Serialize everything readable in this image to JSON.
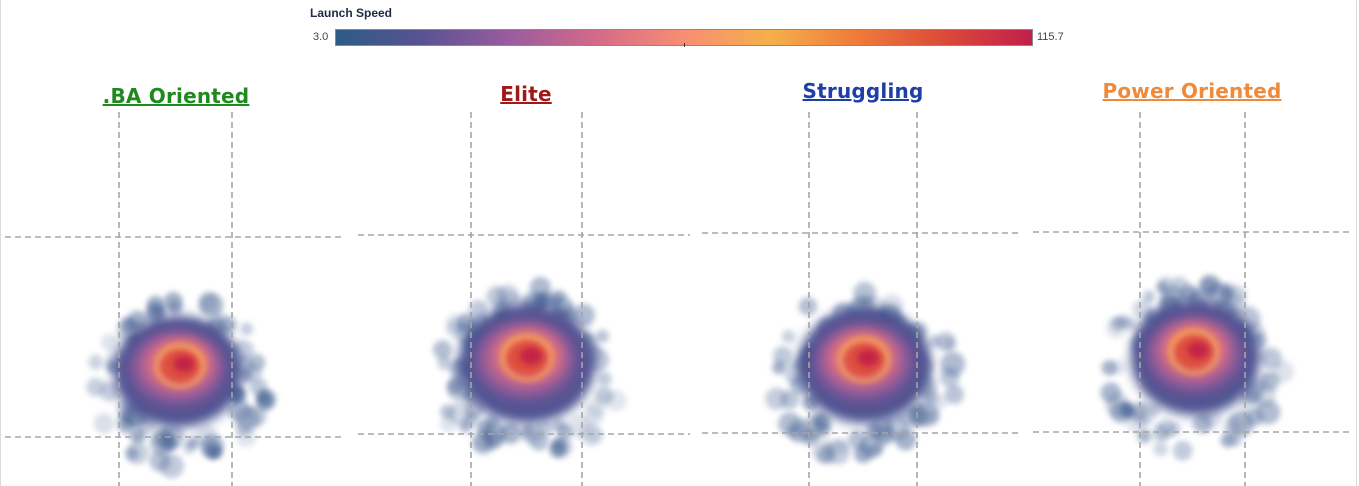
{
  "colors": {
    "ba_oriented": "#1e8a1e",
    "elite": "#a01818",
    "struggling": "#1f3ea8",
    "power_oriented": "#ef8a3a",
    "zone_lines": "#a5a5a5"
  },
  "chart_data": {
    "type": "heatmap",
    "metric": "Launch Speed",
    "color_scale": {
      "title": "Launch Speed",
      "min": 3.0,
      "max": 115.7,
      "min_label": "3.0",
      "max_label": "115.7",
      "stops": [
        "#2d5b86",
        "#5a5293",
        "#9a5c9e",
        "#d46a88",
        "#f78e73",
        "#f5b04a",
        "#ee7a3a",
        "#dc4a3a",
        "#c01f4a"
      ]
    },
    "panels": [
      {
        "id": "ba",
        "title": ".BA Oriented",
        "color_key": "ba_oriented"
      },
      {
        "id": "elite",
        "title": "Elite",
        "color_key": "elite"
      },
      {
        "id": "struggling",
        "title": "Struggling",
        "color_key": "struggling"
      },
      {
        "id": "power",
        "title": "Power Oriented",
        "color_key": "power_oriented"
      }
    ]
  }
}
